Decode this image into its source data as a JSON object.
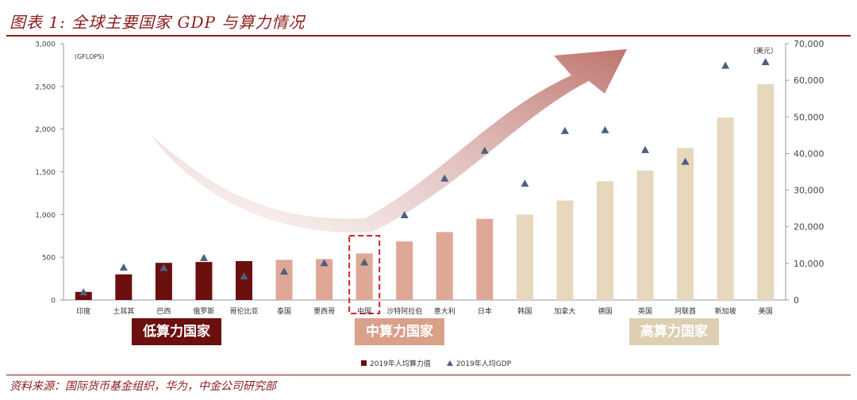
{
  "title": "图表 1: 全球主要国家 GDP 与算力情况",
  "source": "资料来源：国际货币基金组织，华为，中金公司研究部",
  "group_labels": {
    "low": "低算力国家",
    "mid": "中算力国家",
    "high": "高算力国家"
  },
  "legend": {
    "bars": "2019年人均算力值",
    "markers": "2019年人均GDP"
  },
  "colors": {
    "low": "#6b0f0f",
    "mid": "#dea796",
    "high": "#e6d7bd",
    "marker": "#4e5f80",
    "accent": "#8b1a1a"
  },
  "chart_data": {
    "type": "bar",
    "categories": [
      "印度",
      "土耳其",
      "巴西",
      "俄罗斯",
      "哥伦比亚",
      "泰国",
      "墨西哥",
      "中国",
      "沙特阿拉伯",
      "意大利",
      "日本",
      "韩国",
      "加拿大",
      "德国",
      "英国",
      "阿联酋",
      "新加坡",
      "美国"
    ],
    "tiers": [
      "low",
      "low",
      "low",
      "low",
      "low",
      "mid",
      "mid",
      "mid",
      "mid",
      "mid",
      "mid",
      "high",
      "high",
      "high",
      "high",
      "high",
      "high",
      "high"
    ],
    "series": [
      {
        "name": "2019年人均算力值",
        "axis": "left",
        "kind": "bar",
        "values": [
          95,
          300,
          435,
          445,
          455,
          470,
          480,
          545,
          685,
          795,
          950,
          1000,
          1165,
          1390,
          1515,
          1780,
          2135,
          2525
        ]
      },
      {
        "name": "2019年人均GDP",
        "axis": "right",
        "kind": "marker-triangle",
        "values": [
          2100,
          8900,
          8800,
          11500,
          6500,
          7800,
          10100,
          10300,
          23200,
          33200,
          40800,
          31800,
          46200,
          46400,
          41000,
          37800,
          64000,
          65000
        ]
      }
    ],
    "left_axis": {
      "label": "(GFLOPS)",
      "ylim": [
        0,
        3000
      ],
      "ticks": [
        0,
        500,
        1000,
        1500,
        2000,
        2500,
        3000
      ],
      "tick_labels": [
        "0",
        "500",
        "1,000",
        "1,500",
        "2,000",
        "2,500",
        "3,000"
      ]
    },
    "right_axis": {
      "label": "（美元）",
      "ylim": [
        0,
        70000
      ],
      "ticks": [
        0,
        10000,
        20000,
        30000,
        40000,
        50000,
        60000,
        70000
      ],
      "tick_labels": [
        "0",
        "10,000",
        "20,000",
        "30,000",
        "40,000",
        "50,000",
        "60,000",
        "70,000"
      ]
    },
    "highlighted_category": "中国"
  }
}
